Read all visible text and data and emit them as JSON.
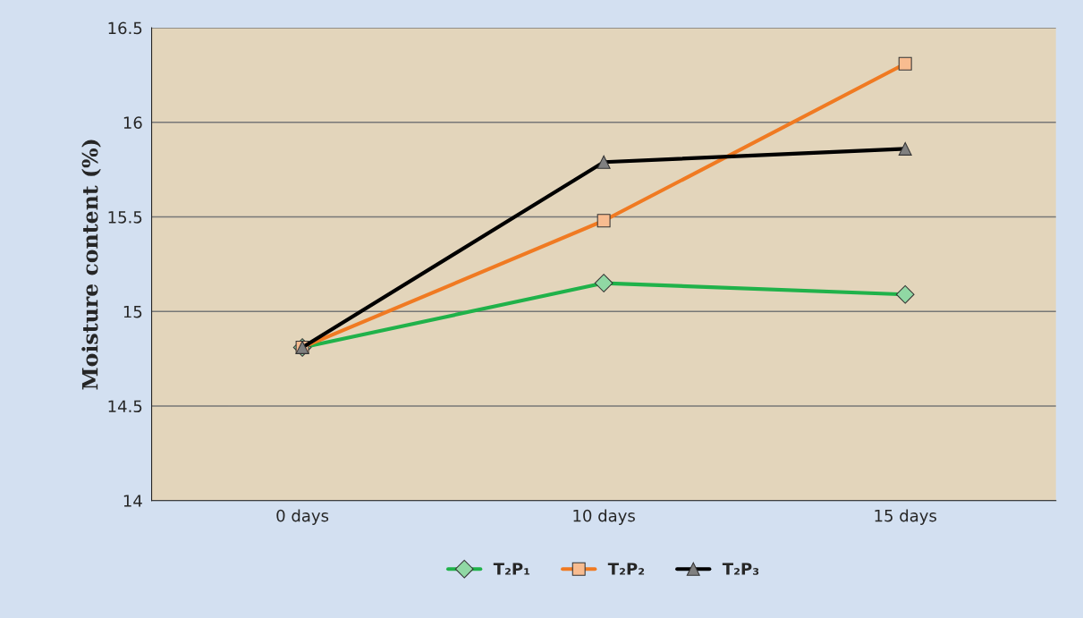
{
  "chart_data": {
    "type": "line",
    "ylabel": "Moisture content (%)",
    "categories": [
      "0 days",
      "10 days",
      "15 days"
    ],
    "series": [
      {
        "name": "T₂P₁",
        "color": "#20b24a",
        "marker": "diamond",
        "values": [
          14.81,
          15.15,
          15.09
        ]
      },
      {
        "name": "T₂P₂",
        "color": "#f07a22",
        "marker": "square",
        "values": [
          14.81,
          15.48,
          16.31
        ]
      },
      {
        "name": "T₂P₃",
        "color": "#000000",
        "marker": "triangle",
        "values": [
          14.81,
          15.79,
          15.86
        ]
      }
    ],
    "ylim": [
      14,
      16.5
    ],
    "yticks": [
      14,
      14.5,
      15,
      15.5,
      16,
      16.5
    ],
    "grid": "y",
    "legend": "bottom"
  }
}
